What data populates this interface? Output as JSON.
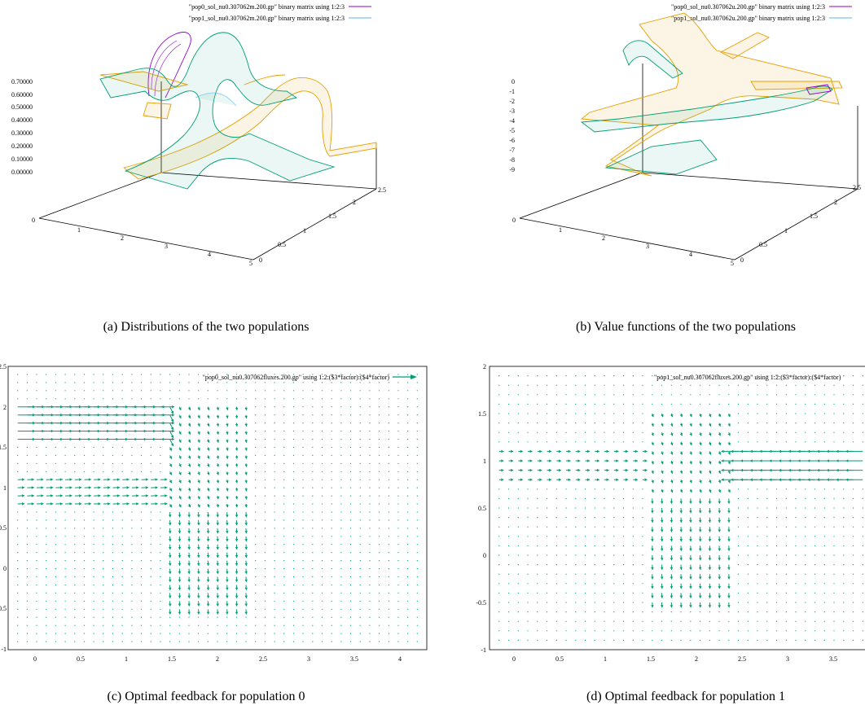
{
  "panels": [
    {
      "id": "a",
      "type": "surface3d",
      "caption": "(a) Distributions of the two populations",
      "legend": [
        {
          "label": "\"pop0_sol_nu0.307062m.200.gp\"  binary matrix using 1:2:3",
          "color": "#9400d3"
        },
        {
          "label": "\"pop1_sol_nu0.307062m.200.gp\"  binary matrix using 1:2:3",
          "color": "#56b4e9"
        }
      ],
      "z_ticks": [
        "0.70000",
        "0.60000",
        "0.50000",
        "0.40000",
        "0.30000",
        "0.20000",
        "0.10000",
        "0.00000"
      ],
      "x_ticks": [
        "0",
        "1",
        "2",
        "3",
        "4",
        "5"
      ],
      "y_ticks": [
        "0",
        "0.5",
        "1",
        "1.5",
        "2",
        "2.5"
      ]
    },
    {
      "id": "b",
      "type": "surface3d",
      "caption": "(b) Value functions of the two populations",
      "legend": [
        {
          "label": "\"pop0_sol_nu0.307062u.200.gp\"  binary matrix using 1:2:3",
          "color": "#9400d3"
        },
        {
          "label": "\"pop1_sol_nu0.307062u.200.gp\"  binary matrix using 1:2:3",
          "color": "#56b4e9"
        }
      ],
      "z_ticks": [
        "0",
        "-1",
        "-2",
        "-3",
        "-4",
        "-5",
        "-6",
        "-7",
        "-8",
        "-9"
      ],
      "x_ticks": [
        "0",
        "1",
        "2",
        "3",
        "4",
        "5"
      ],
      "y_ticks": [
        "0",
        "0.5",
        "1",
        "1.5",
        "2",
        "2.5"
      ]
    },
    {
      "id": "c",
      "type": "vector_field",
      "caption": "(c) Optimal feedback for population 0",
      "legend": [
        {
          "label": "\"pop0_sol_nu0.307062fluxes.200.gp\"  using 1:2:($3*factor):($4*factor)",
          "color": "#009e73"
        }
      ],
      "y_ticks": [
        "2.5",
        "2",
        "1.5",
        "1",
        "0.5",
        "0",
        "-0.5",
        "-1"
      ],
      "x_ticks": [
        "0",
        "0.5",
        "1",
        "1.5",
        "2",
        "2.5",
        "3",
        "3.5",
        "4"
      ]
    },
    {
      "id": "d",
      "type": "vector_field",
      "caption": "(d) Optimal feedback for population 1",
      "legend": [
        {
          "label": "\"pop1_sol_nu0.307062fluxes.200.gp\"  using 1:2:($3*factor):($4*factor)",
          "color": "#009e73"
        }
      ],
      "y_ticks": [
        "2",
        "1.5",
        "1",
        "0.5",
        "0",
        "-0.5",
        "-1"
      ],
      "x_ticks": [
        "0",
        "0.5",
        "1",
        "1.5",
        "2",
        "2.5",
        "3",
        "3.5"
      ]
    }
  ],
  "colors": {
    "pop0_surface": "#e69f00",
    "pop1_surface": "#009e73",
    "arrows": "#009e73",
    "axis": "#000000"
  },
  "chart_data": [
    {
      "type": "surface3d",
      "title": "",
      "series": [
        {
          "name": "\"pop0_sol_nu0.307062m.200.gp\"  binary matrix using 1:2:3"
        },
        {
          "name": "\"pop1_sol_nu0.307062m.200.gp\"  binary matrix using 1:2:3"
        }
      ],
      "xlim": [
        0,
        5
      ],
      "ylim": [
        0,
        2.5
      ],
      "zlim": [
        0,
        0.7
      ],
      "grid": false,
      "legend_position": "top-right"
    },
    {
      "type": "surface3d",
      "title": "",
      "series": [
        {
          "name": "\"pop0_sol_nu0.307062u.200.gp\"  binary matrix using 1:2:3"
        },
        {
          "name": "\"pop1_sol_nu0.307062u.200.gp\"  binary matrix using 1:2:3"
        }
      ],
      "xlim": [
        0,
        5
      ],
      "ylim": [
        0,
        2.5
      ],
      "zlim": [
        -9,
        0
      ],
      "grid": false,
      "legend_position": "top-right"
    },
    {
      "type": "vector_field",
      "title": "",
      "series": [
        {
          "name": "\"pop0_sol_nu0.307062fluxes.200.gp\"  using 1:2:($3*factor):($4*factor)"
        }
      ],
      "xlim": [
        -0.2,
        4.2
      ],
      "ylim": [
        -1,
        2.5
      ],
      "grid": false,
      "legend_position": "top-right"
    },
    {
      "type": "vector_field",
      "title": "",
      "series": [
        {
          "name": "\"pop1_sol_nu0.307062fluxes.200.gp\"  using 1:2:($3*factor):($4*factor)"
        }
      ],
      "xlim": [
        -0.2,
        3.8
      ],
      "ylim": [
        -1,
        2
      ],
      "grid": false,
      "legend_position": "top-right"
    }
  ]
}
